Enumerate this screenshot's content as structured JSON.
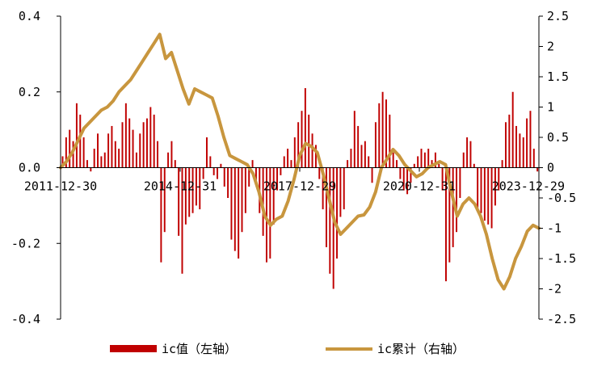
{
  "chart_data": {
    "type": "bar+line",
    "title": "",
    "xlabel": "",
    "ylabel": "",
    "x_tick_labels": [
      "2011-12-30",
      "2014-12-31",
      "2017-12-29",
      "2020-12-31",
      "2023-12-29"
    ],
    "y_left": {
      "ylim": [
        -0.4,
        0.4
      ],
      "tick_labels": [
        "0.4",
        "0.2",
        "0.0",
        "-0.2",
        "-0.4"
      ],
      "tick_values": [
        0.4,
        0.2,
        0.0,
        -0.2,
        -0.4
      ]
    },
    "y_right": {
      "ylim": [
        -2.5,
        2.5
      ],
      "tick_labels": [
        "2.5",
        "2",
        "1.5",
        "1",
        "0.5",
        "0",
        "-0.5",
        "-1",
        "-1.5",
        "-2",
        "-2.5"
      ],
      "tick_values": [
        2.5,
        2,
        1.5,
        1,
        0.5,
        0,
        -0.5,
        -1,
        -1.5,
        -2,
        -2.5
      ]
    },
    "bar_color": "#c00000",
    "line_color": "#c8963e",
    "grid": false,
    "legend_position": "bottom",
    "series": [
      {
        "name": "ic值（左轴）",
        "type": "bar",
        "axis": "left",
        "values": [
          0.03,
          0.08,
          0.1,
          0.07,
          0.17,
          0.14,
          0.08,
          0.02,
          -0.01,
          0.05,
          0.09,
          0.03,
          0.04,
          0.09,
          0.11,
          0.07,
          0.05,
          0.12,
          0.17,
          0.13,
          0.1,
          0.04,
          0.09,
          0.12,
          0.13,
          0.16,
          0.14,
          0.07,
          -0.25,
          -0.17,
          0.04,
          0.07,
          0.02,
          -0.18,
          -0.28,
          -0.15,
          -0.13,
          -0.12,
          -0.1,
          -0.11,
          -0.03,
          0.08,
          0.03,
          -0.02,
          -0.03,
          0.01,
          -0.05,
          -0.08,
          -0.19,
          -0.22,
          -0.24,
          -0.17,
          -0.12,
          -0.05,
          0.02,
          -0.04,
          -0.12,
          -0.18,
          -0.25,
          -0.24,
          -0.15,
          -0.06,
          -0.02,
          0.03,
          0.05,
          0.02,
          0.08,
          0.12,
          0.15,
          0.21,
          0.14,
          0.09,
          0.06,
          -0.03,
          -0.11,
          -0.21,
          -0.28,
          -0.32,
          -0.24,
          -0.13,
          -0.11,
          0.02,
          0.05,
          0.15,
          0.11,
          0.06,
          0.07,
          0.03,
          -0.04,
          0.12,
          0.17,
          0.2,
          0.18,
          0.14,
          0.04,
          0.02,
          -0.03,
          -0.06,
          -0.07,
          -0.04,
          0.01,
          0.03,
          0.05,
          0.04,
          0.05,
          0.02,
          0.04,
          0.01,
          -0.06,
          -0.3,
          -0.25,
          -0.21,
          -0.17,
          -0.08,
          0.04,
          0.08,
          0.07,
          0.01,
          -0.11,
          -0.12,
          -0.14,
          -0.15,
          -0.16,
          -0.1,
          -0.06,
          0.02,
          0.12,
          0.14,
          0.2,
          0.11,
          0.09,
          0.08,
          0.13,
          0.15,
          0.05,
          -0.01
        ]
      },
      {
        "name": "ic累计（右轴）",
        "type": "line",
        "axis": "right",
        "values": [
          0.0,
          0.1,
          0.25,
          0.45,
          0.65,
          0.75,
          0.85,
          0.95,
          1.0,
          1.1,
          1.25,
          1.35,
          1.45,
          1.6,
          1.75,
          1.9,
          2.05,
          2.2,
          1.8,
          1.9,
          1.6,
          1.3,
          1.05,
          1.3,
          1.25,
          1.2,
          1.15,
          0.85,
          0.5,
          0.2,
          0.15,
          0.1,
          0.05,
          -0.1,
          -0.4,
          -0.8,
          -0.95,
          -0.85,
          -0.8,
          -0.55,
          -0.2,
          0.2,
          0.4,
          0.35,
          0.25,
          -0.1,
          -0.5,
          -0.9,
          -1.1,
          -1.0,
          -0.9,
          -0.8,
          -0.78,
          -0.65,
          -0.4,
          0.0,
          0.15,
          0.3,
          0.2,
          0.05,
          -0.05,
          -0.15,
          -0.1,
          0.0,
          0.05,
          0.1,
          0.05,
          -0.4,
          -0.8,
          -0.6,
          -0.5,
          -0.6,
          -0.8,
          -1.1,
          -1.5,
          -1.85,
          -2.0,
          -1.8,
          -1.5,
          -1.3,
          -1.05,
          -0.95,
          -1.0
        ]
      }
    ]
  }
}
